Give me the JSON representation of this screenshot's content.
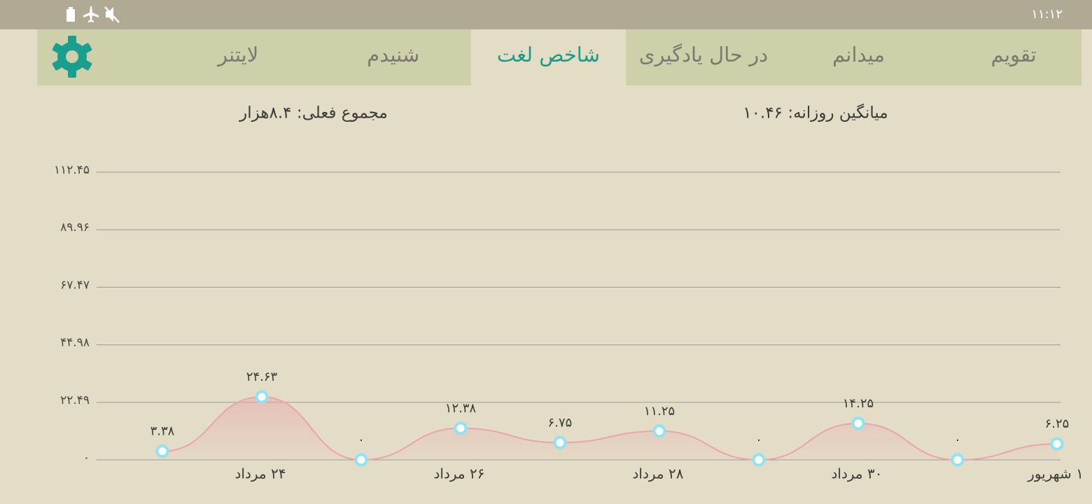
{
  "status_bar": {
    "time": "۱۱:۱۲"
  },
  "tabs": [
    {
      "label": "تقویم",
      "active": false
    },
    {
      "label": "میدانم",
      "active": false
    },
    {
      "label": "در حال یادگیری",
      "active": false
    },
    {
      "label": "شاخص لغت",
      "active": true
    },
    {
      "label": "شنیدم",
      "active": false
    },
    {
      "label": "لایتنر",
      "active": false
    }
  ],
  "stats": {
    "daily_average": "میانگین روزانه: ۱۰.۴۶",
    "current_total": "مجموع فعلی: ۸.۴هزار"
  },
  "chart_data": {
    "type": "line",
    "categories": [
      null,
      "۲۴ مرداد",
      null,
      "۲۶ مرداد",
      null,
      "۲۸ مرداد",
      null,
      "۳۰ مرداد",
      null,
      "۱ شهریور"
    ],
    "values": [
      3.38,
      24.63,
      0,
      12.38,
      6.75,
      11.25,
      0,
      14.25,
      0,
      6.25
    ],
    "value_labels": [
      "۳.۳۸",
      "۲۴.۶۳",
      "۰",
      "۱۲.۳۸",
      "۶.۷۵",
      "۱۱.۲۵",
      "۰",
      "۱۴.۲۵",
      "۰",
      "۶.۲۵"
    ],
    "color": "#eba4ab",
    "marker_color": "#8ee3f7",
    "ylim": [
      0,
      112.45
    ],
    "yticks": [
      {
        "value": 0,
        "label": "۰"
      },
      {
        "value": 22.49,
        "label": "۲۲.۴۹"
      },
      {
        "value": 44.98,
        "label": "۴۴.۹۸"
      },
      {
        "value": 67.47,
        "label": "۶۷.۴۷"
      },
      {
        "value": 89.96,
        "label": "۸۹.۹۶"
      },
      {
        "value": 112.45,
        "label": "۱۱۲.۴۵"
      }
    ],
    "grid": true
  }
}
